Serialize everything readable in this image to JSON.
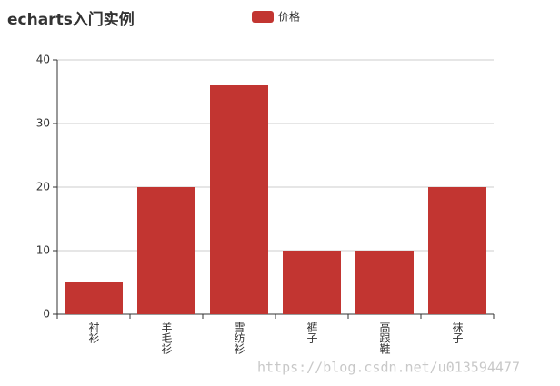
{
  "chart_data": {
    "type": "bar",
    "title": "echarts入门实例",
    "categories": [
      "衬衫",
      "羊毛衫",
      "雪纺衫",
      "裤子",
      "高跟鞋",
      "袜子"
    ],
    "series": [
      {
        "name": "价格",
        "color": "#c23531",
        "values": [
          5,
          20,
          36,
          10,
          10,
          20
        ]
      }
    ],
    "ylim": [
      0,
      40
    ],
    "yticks": [
      0,
      10,
      20,
      30,
      40
    ],
    "grid": true,
    "legend": "top"
  },
  "watermark": "https://blog.csdn.net/u013594477"
}
